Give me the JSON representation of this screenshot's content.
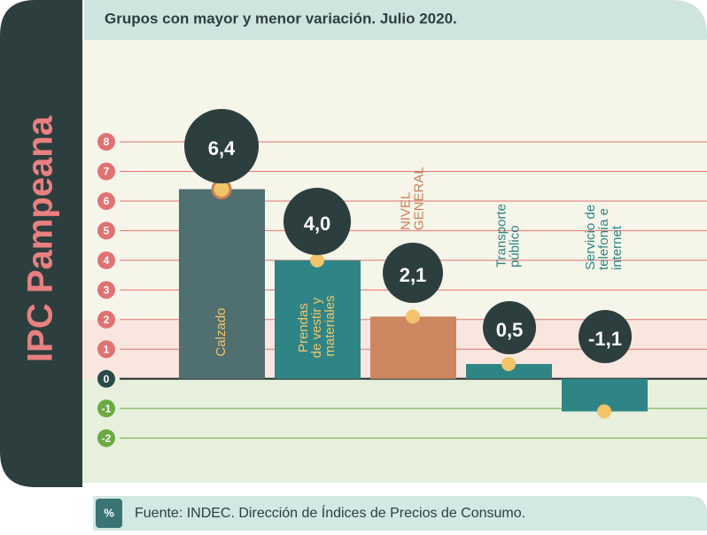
{
  "panel_label": "IPC Pampeana",
  "footer": {
    "badge": "%",
    "source": "Fuente: INDEC. Dirección de Índices de Precios de Consumo."
  },
  "chart_data": {
    "type": "bar",
    "title": "Grupos con mayor y menor variación. Julio 2020.",
    "categories": [
      "Calzado",
      "Prendas\nde vestir y\nmateriales",
      "NIVEL\nGENERAL",
      "Transporte\npúblico",
      "Servicio de\ntelefonía e\ninternet"
    ],
    "values": [
      6.4,
      4.0,
      2.1,
      0.5,
      -1.1
    ],
    "value_labels": [
      "6,4",
      "4,0",
      "2,1",
      "0,5",
      "-1,1"
    ],
    "colors": [
      "#4f6f70",
      "#2f8585",
      "#cc8660",
      "#2f8585",
      "#2f8585"
    ],
    "ylim": [
      -2.7,
      8.6
    ],
    "yticks": [
      -2,
      -1,
      0,
      1,
      2,
      3,
      4,
      5,
      6,
      7,
      8
    ],
    "grid": true
  }
}
